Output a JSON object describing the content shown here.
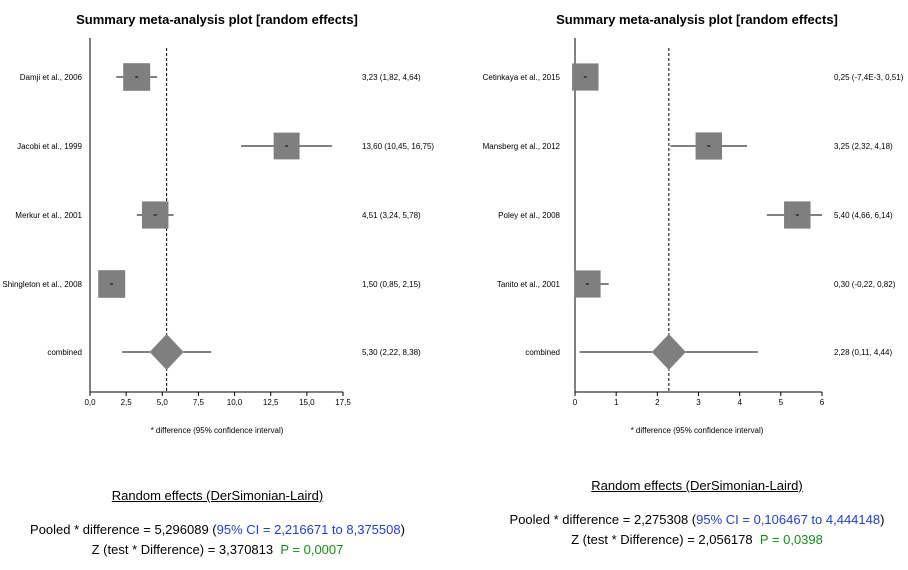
{
  "chart_data": [
    {
      "type": "forest",
      "title": "Summary meta-analysis plot [random effects]",
      "xlabel": "* difference (95% confidence interval)",
      "xlim": [
        0,
        17.5
      ],
      "xticks": [
        0,
        2.5,
        5,
        7.5,
        10,
        12.5,
        15,
        17.5
      ],
      "xtick_labels": [
        "0,0",
        "2,5",
        "5,0",
        "7,5",
        "10,0",
        "12,5",
        "15,0",
        "17,5"
      ],
      "pooled": 5.3,
      "studies": [
        {
          "label": "Damji et al., 2006",
          "est": 3.23,
          "lo": 1.82,
          "hi": 4.64,
          "weight": 0.26,
          "ci_text": "3,23 (1,82, 4,64)"
        },
        {
          "label": "Jacobi et al., 1999",
          "est": 13.6,
          "lo": 10.45,
          "hi": 16.75,
          "weight": 0.24,
          "ci_text": "13,60 (10,45, 16,75)"
        },
        {
          "label": "Merkur et al., 2001",
          "est": 4.51,
          "lo": 3.24,
          "hi": 5.78,
          "weight": 0.25,
          "ci_text": "4,51 (3,24, 5,78)"
        },
        {
          "label": "Shingleton et al., 2008",
          "est": 1.5,
          "lo": 0.85,
          "hi": 2.15,
          "weight": 0.26,
          "ci_text": "1,50 (0,85, 2,15)"
        }
      ],
      "combined": {
        "label": "combined",
        "est": 5.3,
        "lo": 2.22,
        "hi": 8.38,
        "ci_text": "5,30 (2,22, 8,38)"
      }
    },
    {
      "type": "forest",
      "title": "Summary meta-analysis plot [random effects]",
      "xlabel": "* difference (95% confidence interval)",
      "xlim": [
        0,
        6
      ],
      "xticks": [
        0,
        1,
        2,
        3,
        4,
        5,
        6
      ],
      "xtick_labels": [
        "0",
        "1",
        "2",
        "3",
        "4",
        "5",
        "6"
      ],
      "pooled": 2.28,
      "studies": [
        {
          "label": "Cetinkaya et al., 2015",
          "est": 0.25,
          "lo": -0.0074,
          "hi": 0.51,
          "weight": 0.25,
          "ci_text": "0,25 (-7,4E-3, 0,51)"
        },
        {
          "label": "Mansberg et al., 2012",
          "est": 3.25,
          "lo": 2.32,
          "hi": 4.18,
          "weight": 0.25,
          "ci_text": "3,25 (2,32, 4,18)"
        },
        {
          "label": "Poley et al., 2008",
          "est": 5.4,
          "lo": 4.66,
          "hi": 6.14,
          "weight": 0.25,
          "ci_text": "5,40 (4,66, 6,14)"
        },
        {
          "label": "Tanito et al., 2001",
          "est": 0.3,
          "lo": -0.22,
          "hi": 0.82,
          "weight": 0.25,
          "ci_text": "0,30 (-0,22, 0,82)"
        }
      ],
      "combined": {
        "label": "combined",
        "est": 2.28,
        "lo": 0.11,
        "hi": 4.44,
        "ci_text": "2,28 (0,11, 4,44)"
      }
    }
  ],
  "summaries": [
    {
      "heading": "Random effects (DerSimonian-Laird)",
      "pooled_prefix": "Pooled * difference = 5,296089 (",
      "ci": "95% CI = 2,216671 to 8,375508",
      "pooled_suffix": ")",
      "z_text": "Z (test * Difference) = 3,370813",
      "p": "P = 0,0007"
    },
    {
      "heading": "Random effects (DerSimonian-Laird)",
      "pooled_prefix": "Pooled * difference = 2,275308 (",
      "ci": "95% CI = 0,106467 to 4,444148",
      "pooled_suffix": ")",
      "z_text": "Z (test * Difference) = 2,056178",
      "p": "P = 0,0398"
    }
  ]
}
